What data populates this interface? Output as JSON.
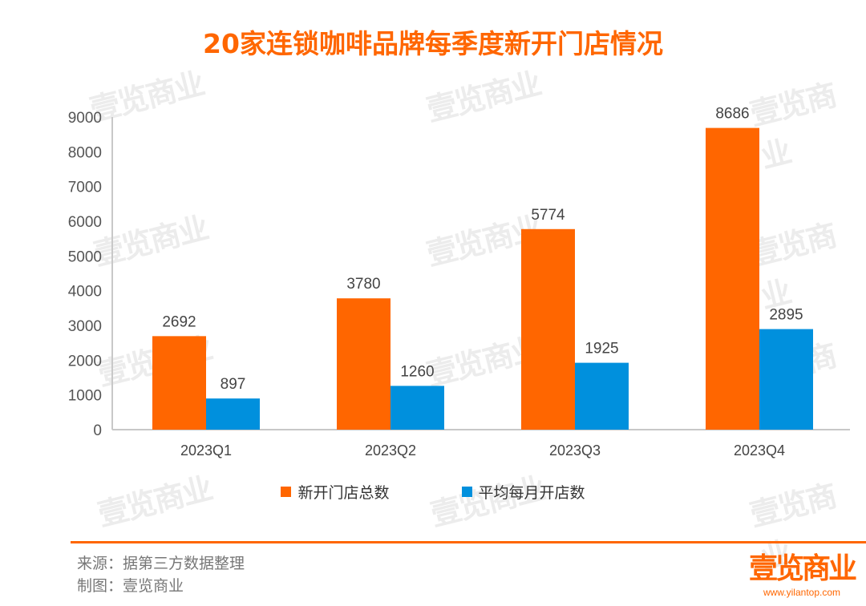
{
  "chart_data": {
    "type": "bar",
    "title": "20家连锁咖啡品牌每季度新开门店情况",
    "categories": [
      "2023Q1",
      "2023Q2",
      "2023Q3",
      "2023Q4"
    ],
    "series": [
      {
        "name": "新开门店总数",
        "values": [
          2692,
          3780,
          5774,
          8686
        ],
        "color": "#FF6600"
      },
      {
        "name": "平均每月开店数",
        "values": [
          897,
          1260,
          1925,
          2895
        ],
        "color": "#0090DD"
      }
    ],
    "ylim": [
      0,
      9000
    ],
    "yticks": [
      0,
      1000,
      2000,
      3000,
      4000,
      5000,
      6000,
      7000,
      8000,
      9000
    ],
    "xlabel": "",
    "ylabel": "",
    "grid": false,
    "legend": "bottom",
    "data_labels": true
  },
  "footer": {
    "source": "来源：据第三方数据整理",
    "credit": "制图：壹览商业"
  },
  "logo": {
    "text": "壹览商业",
    "url": "www.yilantop.com"
  },
  "watermark": "壹览商业"
}
